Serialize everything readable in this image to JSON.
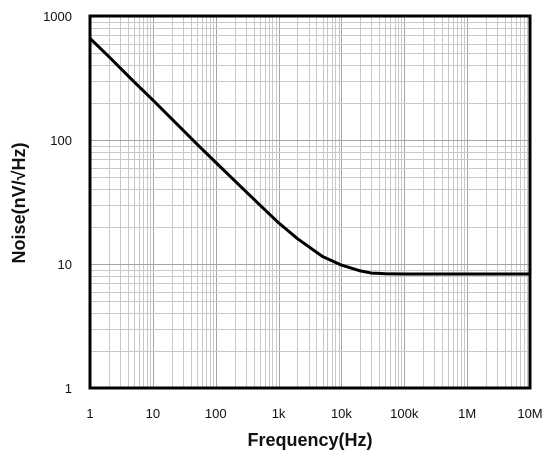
{
  "chart_data": {
    "type": "line",
    "title": "",
    "xlabel": "Frequency(Hz)",
    "ylabel": "Noise(nV/√Hz)",
    "xscale": "log",
    "yscale": "log",
    "xlim": [
      1,
      10000000
    ],
    "ylim": [
      1,
      1000
    ],
    "grid": true,
    "x_ticks": [
      {
        "value": 1,
        "label": "1"
      },
      {
        "value": 10,
        "label": "10"
      },
      {
        "value": 100,
        "label": "100"
      },
      {
        "value": 1000,
        "label": "1k"
      },
      {
        "value": 10000,
        "label": "10k"
      },
      {
        "value": 100000,
        "label": "100k"
      },
      {
        "value": 1000000,
        "label": "1M"
      },
      {
        "value": 10000000,
        "label": "10M"
      }
    ],
    "y_ticks": [
      {
        "value": 1,
        "label": "1"
      },
      {
        "value": 10,
        "label": "10"
      },
      {
        "value": 100,
        "label": "100"
      },
      {
        "value": 1000,
        "label": "1000"
      }
    ],
    "series": [
      {
        "color": "#000000",
        "x": [
          1,
          2,
          5,
          10,
          20,
          50,
          100,
          200,
          500,
          1000,
          2000,
          5000,
          10000,
          20000,
          30000,
          50000,
          100000,
          200000,
          500000,
          1000000,
          10000000
        ],
        "y": [
          660,
          470,
          295,
          210,
          148,
          93,
          66,
          47,
          30,
          21.5,
          16,
          11.5,
          9.8,
          8.8,
          8.45,
          8.35,
          8.3,
          8.3,
          8.3,
          8.3,
          8.3
        ]
      }
    ]
  }
}
